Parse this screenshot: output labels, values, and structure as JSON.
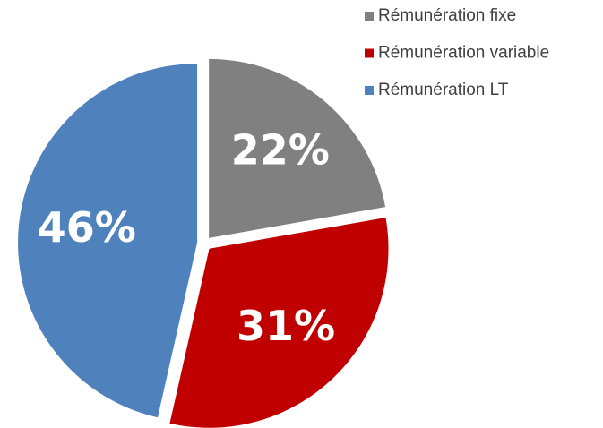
{
  "chart_data": {
    "type": "pie",
    "categories": [
      "Rémunération fixe",
      "Rémunération variable",
      "Rémunération LT"
    ],
    "values": [
      22,
      31,
      46
    ],
    "value_labels": [
      "22%",
      "31%",
      "46%"
    ],
    "colors": [
      "#808080",
      "#c00000",
      "#4f81bd"
    ],
    "legend": "top-right"
  }
}
